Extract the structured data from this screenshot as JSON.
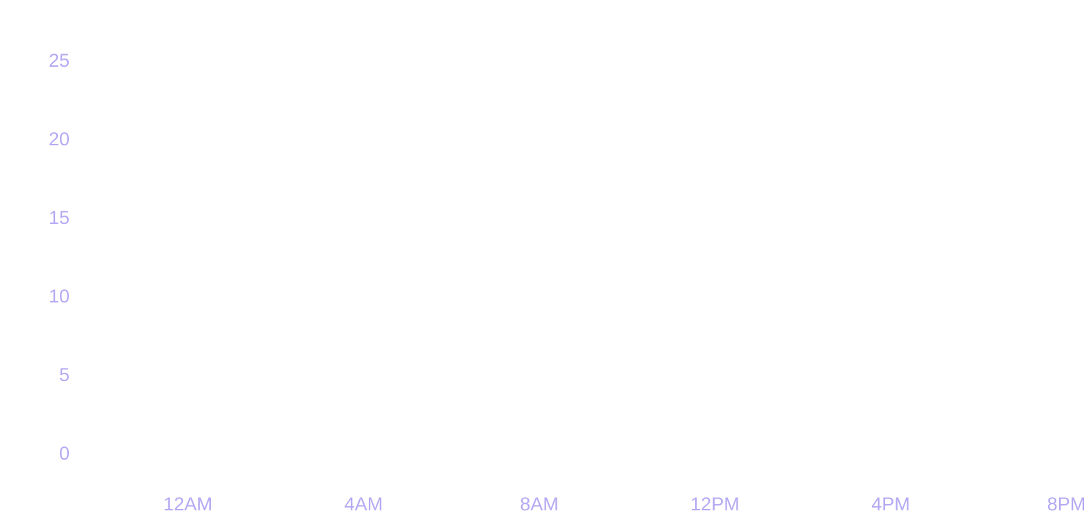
{
  "chart_data": {
    "type": "line",
    "categories": [
      "12AM",
      "4AM",
      "8AM",
      "12PM",
      "4PM",
      "8PM"
    ],
    "ylim": [
      0,
      25
    ],
    "yticks": [
      0,
      5,
      10,
      15,
      20,
      25
    ],
    "tick_color": "#b4aaf3"
  }
}
